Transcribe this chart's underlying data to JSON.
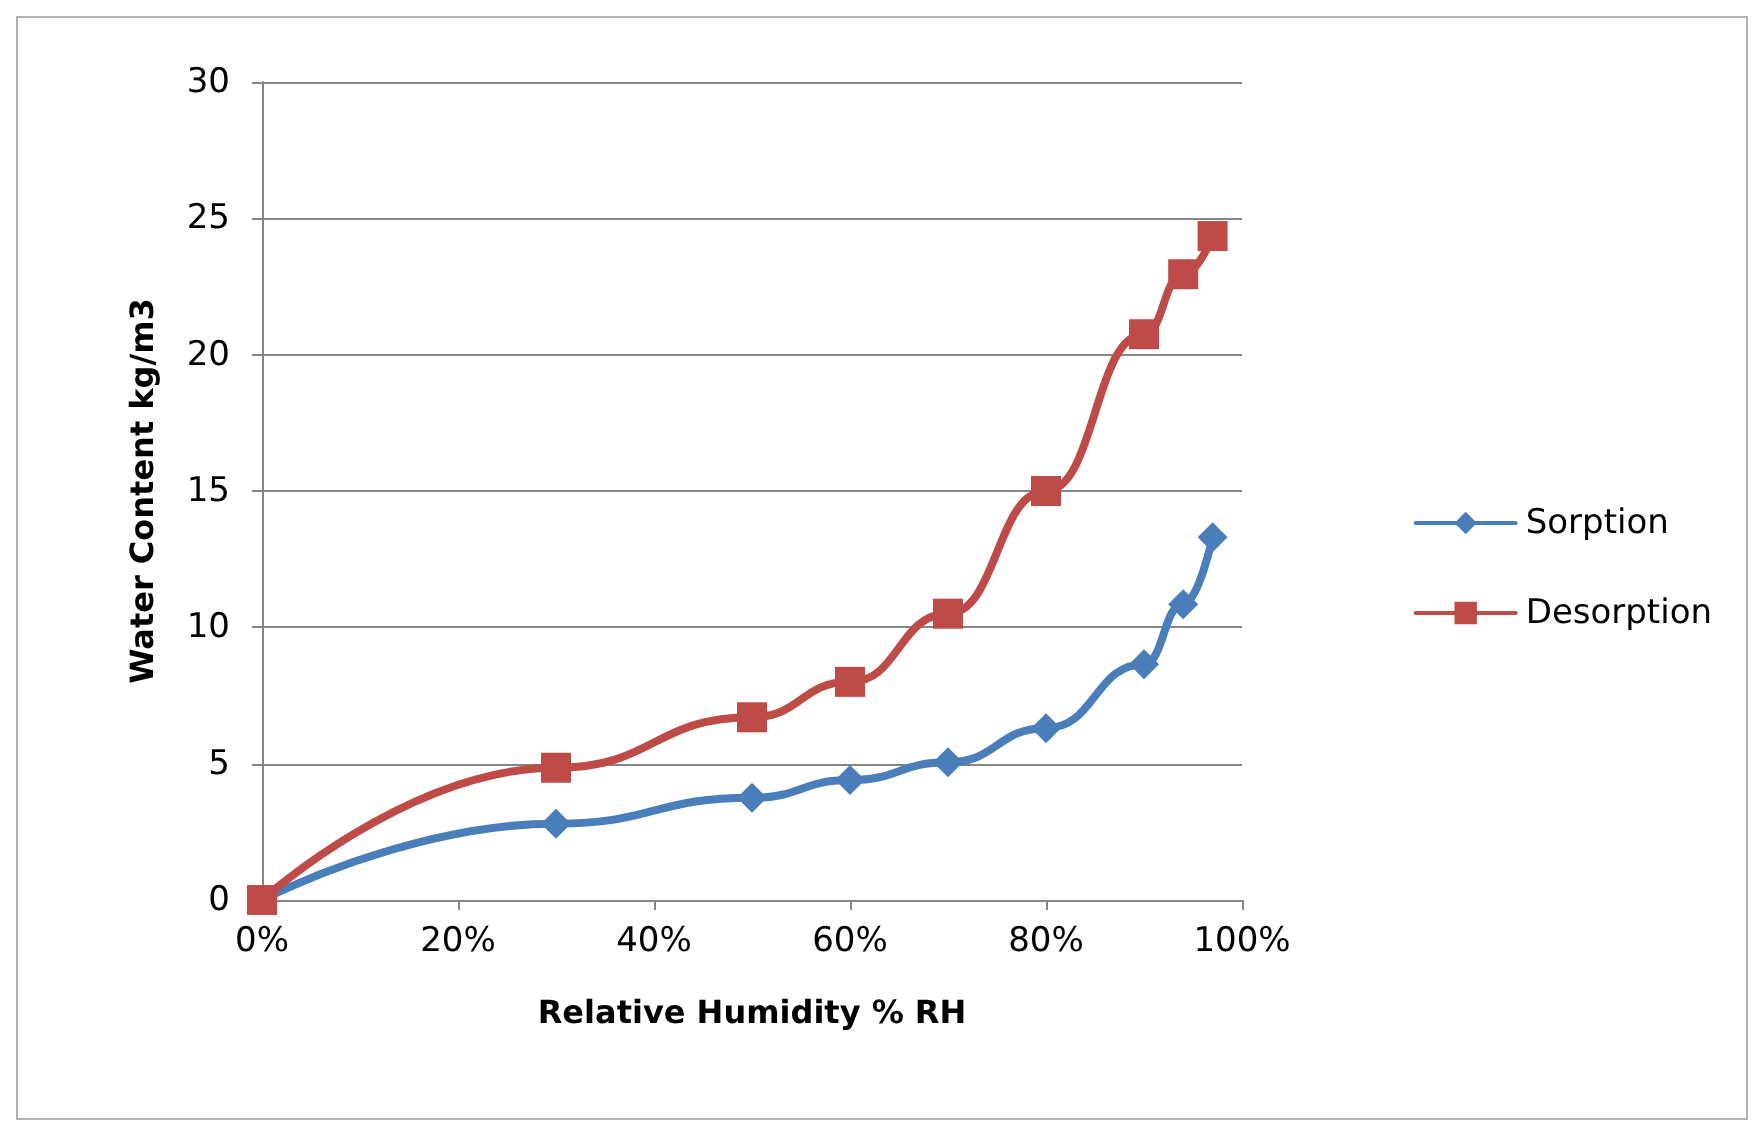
{
  "chart_data": {
    "type": "line",
    "xlabel": "Relative Humidity % RH",
    "ylabel": "Water Content kg/m3",
    "x": [
      0,
      30,
      50,
      60,
      70,
      80,
      90,
      94,
      97
    ],
    "series": [
      {
        "name": "Sorption",
        "color": "#4a7ebb",
        "marker": "diamond",
        "values": [
          0,
          2.8,
          3.75,
          4.4,
          5.05,
          6.3,
          8.65,
          10.85,
          13.3
        ]
      },
      {
        "name": "Desorption",
        "color": "#be4b48",
        "marker": "square",
        "values": [
          0,
          4.85,
          6.7,
          8.0,
          10.5,
          15.0,
          20.75,
          22.95,
          24.35
        ]
      }
    ],
    "xlim": [
      0,
      100
    ],
    "xticks": [
      {
        "value": 0,
        "label": "0%"
      },
      {
        "value": 20,
        "label": "20%"
      },
      {
        "value": 40,
        "label": "40%"
      },
      {
        "value": 60,
        "label": "60%"
      },
      {
        "value": 80,
        "label": "80%"
      },
      {
        "value": 100,
        "label": "100%"
      }
    ],
    "ylim": [
      0,
      30
    ],
    "yticks": [
      0,
      5,
      10,
      15,
      20,
      25,
      30
    ],
    "grid": "y",
    "legend": "right"
  }
}
